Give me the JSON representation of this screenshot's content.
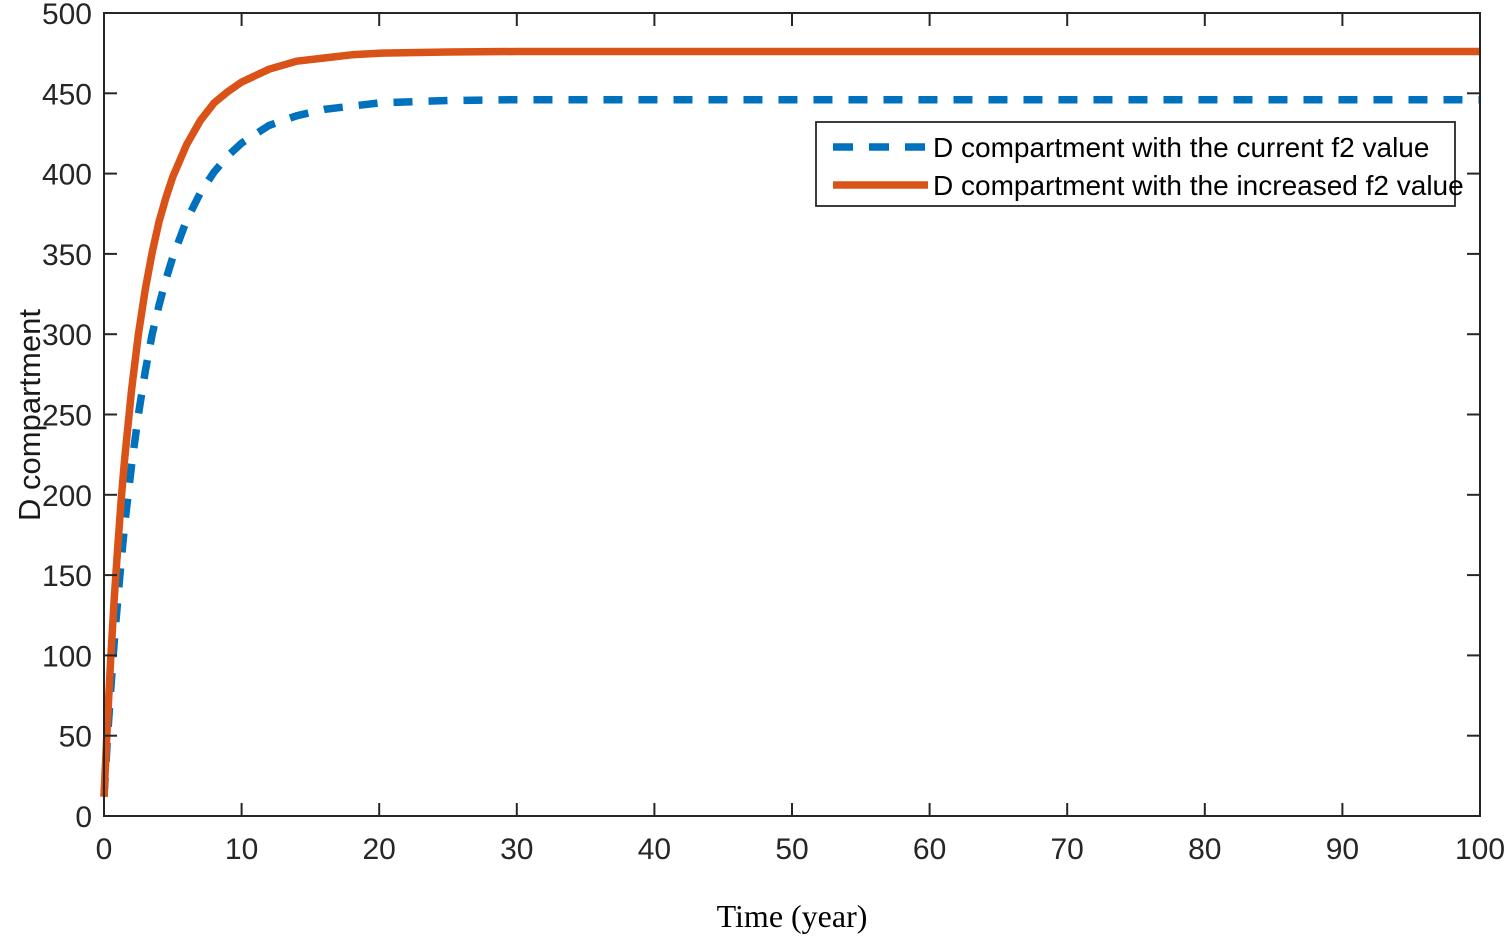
{
  "figure": {
    "background": "#ffffff",
    "axis_color": "#262626",
    "text_color": "#000000"
  },
  "chart_data": {
    "type": "line",
    "title": "",
    "xlabel": "Time (year)",
    "ylabel": "D compartment",
    "xlim": [
      0,
      100
    ],
    "ylim": [
      0,
      500
    ],
    "x_ticks": [
      0,
      10,
      20,
      30,
      40,
      50,
      60,
      70,
      80,
      90,
      100
    ],
    "y_ticks": [
      0,
      50,
      100,
      150,
      200,
      250,
      300,
      350,
      400,
      450,
      500
    ],
    "grid": false,
    "legend": {
      "position": "upper right",
      "border": true,
      "entries": [
        "D compartment with the current f2 value",
        "D compartment with the increased f2 value"
      ]
    },
    "series": [
      {
        "name": "D compartment with the current f2 value",
        "color": "#0072BD",
        "line_style": "dashed",
        "start_value": 12,
        "asymptote": 446,
        "points": [
          [
            0,
            12
          ],
          [
            0.1,
            26
          ],
          [
            0.25,
            48
          ],
          [
            0.5,
            80
          ],
          [
            0.75,
            109
          ],
          [
            1,
            135
          ],
          [
            1.25,
            159
          ],
          [
            1.5,
            181
          ],
          [
            2,
            218
          ],
          [
            2.5,
            250
          ],
          [
            3,
            277
          ],
          [
            3.5,
            300
          ],
          [
            4,
            318
          ],
          [
            4.5,
            334
          ],
          [
            5,
            348
          ],
          [
            6,
            371
          ],
          [
            7,
            388
          ],
          [
            8,
            401
          ],
          [
            9,
            411
          ],
          [
            10,
            419
          ],
          [
            12,
            430
          ],
          [
            14,
            436
          ],
          [
            16,
            440
          ],
          [
            18,
            442
          ],
          [
            20,
            444
          ],
          [
            25,
            445.5
          ],
          [
            30,
            446
          ],
          [
            40,
            446
          ],
          [
            50,
            446
          ],
          [
            60,
            446
          ],
          [
            70,
            446
          ],
          [
            80,
            446
          ],
          [
            90,
            446
          ],
          [
            100,
            446
          ]
        ]
      },
      {
        "name": "D compartment with the increased f2 value",
        "color": "#D95319",
        "line_style": "solid",
        "start_value": 12,
        "asymptote": 476,
        "points": [
          [
            0,
            12
          ],
          [
            0.1,
            31
          ],
          [
            0.25,
            58
          ],
          [
            0.5,
            100
          ],
          [
            0.75,
            136
          ],
          [
            1,
            168
          ],
          [
            1.25,
            197
          ],
          [
            1.5,
            222
          ],
          [
            2,
            265
          ],
          [
            2.5,
            300
          ],
          [
            3,
            328
          ],
          [
            3.5,
            351
          ],
          [
            4,
            370
          ],
          [
            4.5,
            385
          ],
          [
            5,
            398
          ],
          [
            6,
            418
          ],
          [
            7,
            433
          ],
          [
            8,
            444
          ],
          [
            9,
            451
          ],
          [
            10,
            457
          ],
          [
            12,
            465
          ],
          [
            14,
            470
          ],
          [
            16,
            472
          ],
          [
            18,
            474
          ],
          [
            20,
            475
          ],
          [
            25,
            475.7
          ],
          [
            30,
            476
          ],
          [
            40,
            476
          ],
          [
            50,
            476
          ],
          [
            60,
            476
          ],
          [
            70,
            476
          ],
          [
            80,
            476
          ],
          [
            90,
            476
          ],
          [
            100,
            476
          ]
        ]
      }
    ]
  }
}
